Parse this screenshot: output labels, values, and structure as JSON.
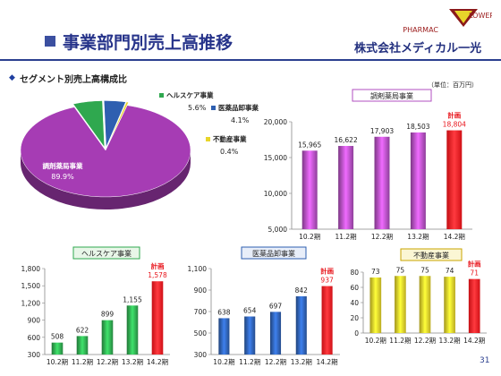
{
  "page": {
    "title": "事業部門別売上高推移",
    "section_title": "セグメント別売上高構成比",
    "unit_note": "（単位：百万円）",
    "page_number": "31"
  },
  "brand": {
    "logo_text": "PHARMAC",
    "logo_flower": "LOWER",
    "company": "株式会社メディカル一光"
  },
  "colors": {
    "pharmacy": "#b24fc0",
    "healthcare": "#2fa84f",
    "wholesale": "#2e5fb0",
    "realestate": "#e8d52a",
    "plan": "#e8141b",
    "navy": "#26338a"
  },
  "chart_data": [
    {
      "type": "pie",
      "title": "",
      "slices": [
        {
          "name": "調剤薬局事業",
          "value": 89.9,
          "label": "89.9%",
          "color": "#a63cb4"
        },
        {
          "name": "ヘルスケア事業",
          "value": 5.6,
          "label": "5.6%",
          "color": "#2fa84f"
        },
        {
          "name": "医薬品卸事業",
          "value": 4.1,
          "label": "4.1%",
          "color": "#2e5fb0"
        },
        {
          "name": "不動産事業",
          "value": 0.4,
          "label": "0.4%",
          "color": "#e8d52a"
        }
      ]
    },
    {
      "type": "bar",
      "title": "調剤薬局事業",
      "categories": [
        "10.2期",
        "11.2期",
        "12.2期",
        "13.2期",
        "14.2期"
      ],
      "values": [
        15965,
        16622,
        17903,
        18503,
        18804
      ],
      "labels": [
        "15,965",
        "16,622",
        "17,903",
        "18,503",
        "18,804"
      ],
      "ylim": [
        5000,
        20000
      ],
      "yticks": [
        "5,000",
        "10,000",
        "15,000",
        "20,000"
      ],
      "ytick_values": [
        5000,
        10000,
        15000,
        20000
      ],
      "plan_index": 4,
      "plan_label": "計画"
    },
    {
      "type": "bar",
      "title": "ヘルスケア事業",
      "categories": [
        "10.2期",
        "11.2期",
        "12.2期",
        "13.2期",
        "14.2期"
      ],
      "values": [
        508,
        622,
        899,
        1155,
        1578
      ],
      "labels": [
        "508",
        "622",
        "899",
        "1,155",
        "1,578"
      ],
      "ylim": [
        300,
        1800
      ],
      "yticks": [
        "300",
        "600",
        "900",
        "1,200",
        "1,500",
        "1,800"
      ],
      "ytick_values": [
        300,
        600,
        900,
        1200,
        1500,
        1800
      ],
      "plan_index": 4,
      "plan_label": "計画"
    },
    {
      "type": "bar",
      "title": "医薬品卸事業",
      "categories": [
        "10.2期",
        "11.2期",
        "12.2期",
        "13.2期",
        "14.2期"
      ],
      "values": [
        638,
        654,
        697,
        842,
        937
      ],
      "labels": [
        "638",
        "654",
        "697",
        "842",
        "937"
      ],
      "ylim": [
        300,
        1100
      ],
      "yticks": [
        "300",
        "500",
        "700",
        "900",
        "1,100"
      ],
      "ytick_values": [
        300,
        500,
        700,
        900,
        1100
      ],
      "plan_index": 4,
      "plan_label": "計画"
    },
    {
      "type": "bar",
      "title": "不動産事業",
      "categories": [
        "10.2期",
        "11.2期",
        "12.2期",
        "13.2期",
        "14.2期"
      ],
      "values": [
        73,
        75,
        75,
        74,
        71
      ],
      "labels": [
        "73",
        "75",
        "75",
        "74",
        "71"
      ],
      "ylim": [
        0,
        80
      ],
      "yticks": [
        "0",
        "20",
        "40",
        "60",
        "80"
      ],
      "ytick_values": [
        0,
        20,
        40,
        60,
        80
      ],
      "plan_index": 4,
      "plan_label": "計画"
    }
  ]
}
